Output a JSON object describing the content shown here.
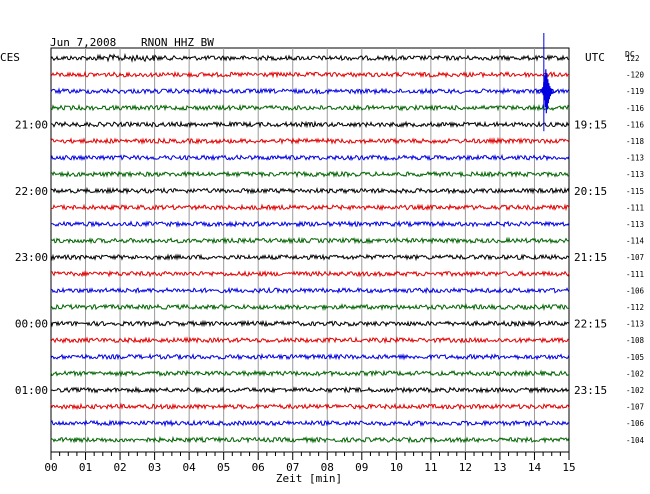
{
  "header": {
    "date": "Jun 7,2008",
    "station": "RNON HHZ BW",
    "left_timezone": "CES",
    "right_timezone": "UTC",
    "dc_label": "DC"
  },
  "chart_data": {
    "type": "line",
    "title": "Jun 7,2008   RNON HHZ BW",
    "xlabel": "Zeit [min]",
    "xlim": [
      0,
      15
    ],
    "x_ticks": [
      "00",
      "01",
      "02",
      "03",
      "04",
      "05",
      "06",
      "07",
      "08",
      "09",
      "10",
      "11",
      "12",
      "13",
      "14",
      "15"
    ],
    "rows_per_hour": 4,
    "row_minutes": 15,
    "left_hour_labels": [
      "21:00",
      "22:00",
      "23:00",
      "00:00",
      "01:00"
    ],
    "right_hour_labels": [
      "19:15",
      "20:15",
      "21:15",
      "22:15",
      "23:15"
    ],
    "dc_offsets": [
      122,
      -120,
      -119,
      -116,
      -116,
      -118,
      -113,
      -113,
      -115,
      -111,
      -113,
      -114,
      -107,
      -111,
      -106,
      -112,
      -113,
      -108,
      -105,
      -102,
      -102,
      -107,
      -106,
      -104
    ],
    "trace_colors": [
      "#000000",
      "#e00000",
      "#0000e0",
      "#006400"
    ],
    "event": {
      "row": 2,
      "minute": 14.3,
      "note": "large amplitude spike"
    },
    "grid": true
  }
}
